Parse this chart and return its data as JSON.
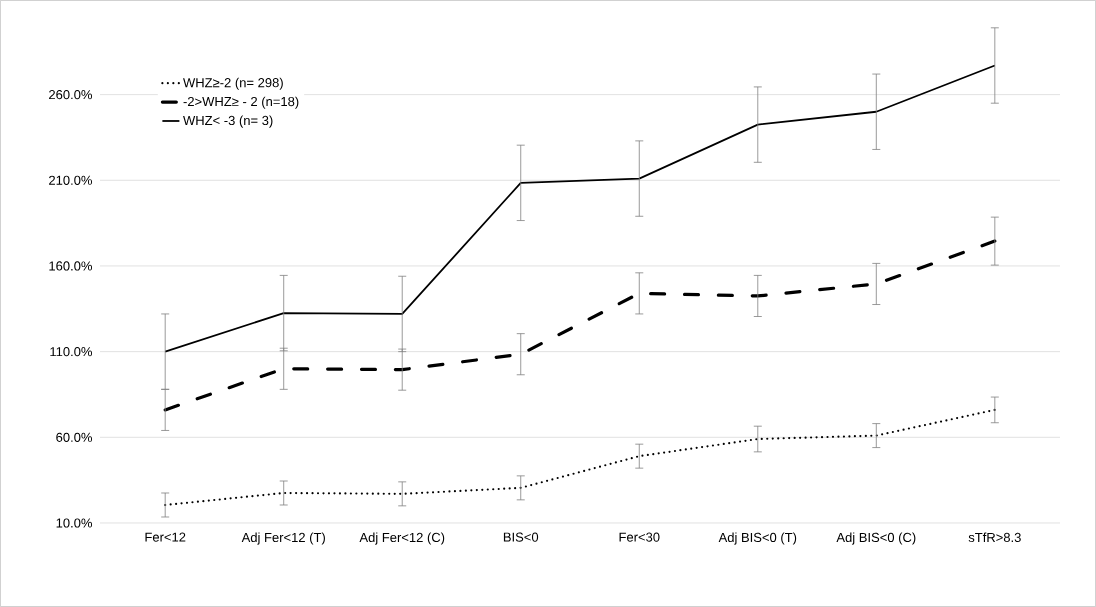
{
  "chart_data": {
    "type": "line",
    "categories": [
      "Fer<12",
      "Adj Fer<12 (T)",
      "Adj Fer<12 (C)",
      "BIS<0",
      "Fer<30",
      "Adj BIS<0 (T)",
      "Adj BIS<0 (C)",
      "sTfR>8.3"
    ],
    "series": [
      {
        "name": "WHZ≥-2 (n= 298)",
        "color": "#000000",
        "line_style": "dotted",
        "values": [
          20.5,
          27.5,
          27,
          30.5,
          49,
          59,
          61,
          76
        ],
        "errors": [
          7,
          7,
          7,
          7,
          7,
          7.5,
          7,
          7.5
        ]
      },
      {
        "name": "-2>WHZ≥ - 2 (n=18)",
        "color": "#000000",
        "line_style": "dashed",
        "values": [
          76,
          100,
          99.5,
          108.5,
          144,
          142.5,
          149.5,
          174.5
        ],
        "errors": [
          12,
          12,
          12,
          12,
          12,
          12,
          12,
          14
        ]
      },
      {
        "name": "WHZ< -3 (n= 3)",
        "color": "#000000",
        "line_style": "solid",
        "values": [
          110,
          132.5,
          132,
          208.5,
          211,
          242.5,
          250,
          277
        ],
        "errors": [
          22,
          22,
          22,
          22,
          22,
          22,
          22,
          22
        ]
      }
    ],
    "ylim": [
      10,
      315
    ],
    "yticks": [
      {
        "value": 10,
        "label": "10.0%"
      },
      {
        "value": 60,
        "label": "60.0%"
      },
      {
        "value": 110,
        "label": "110.0%"
      },
      {
        "value": 160,
        "label": "160.0%"
      },
      {
        "value": 210,
        "label": "210.0%"
      },
      {
        "value": 260,
        "label": "260.0%"
      }
    ],
    "grid": "y",
    "legend": "top left",
    "marker": "none"
  }
}
